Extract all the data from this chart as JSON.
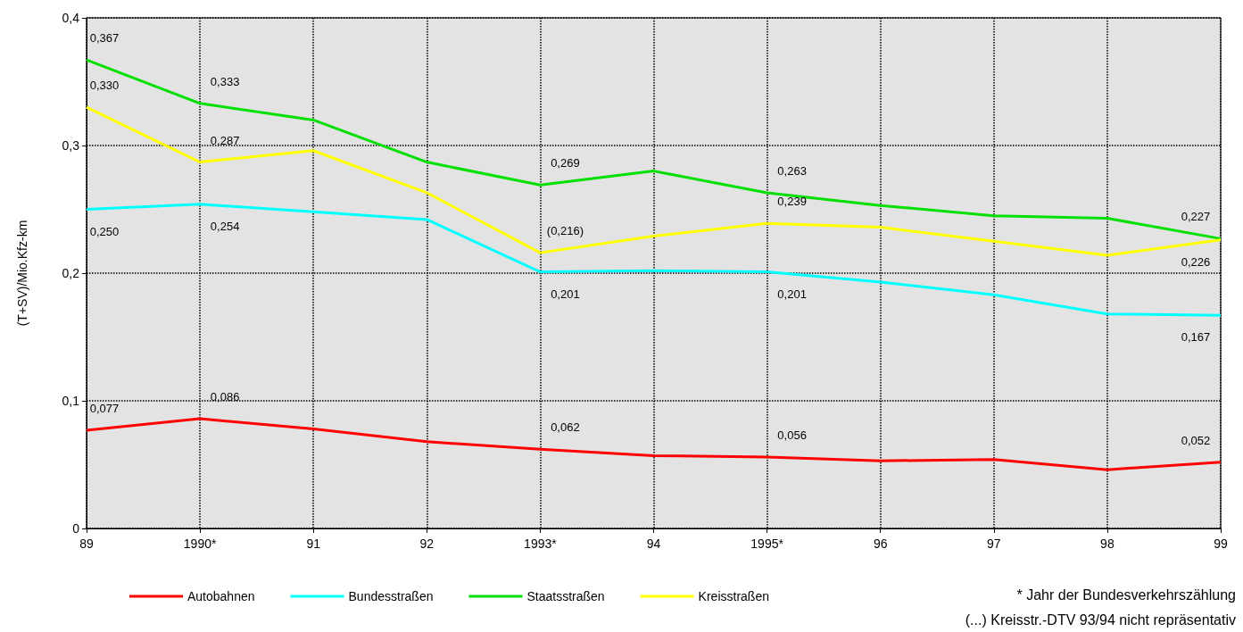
{
  "chart_data": {
    "type": "line",
    "ylabel": "(T+SV)/Mio.Kfz-km",
    "categories": [
      "89",
      "1990*",
      "91",
      "92",
      "1993*",
      "94",
      "1995*",
      "96",
      "97",
      "98",
      "99"
    ],
    "series": [
      {
        "name": "Autobahnen",
        "color": "#ff0000",
        "values": [
          0.077,
          0.086,
          0.078,
          0.068,
          0.062,
          0.057,
          0.056,
          0.053,
          0.054,
          0.046,
          0.052
        ],
        "value_labels": [
          "0,077",
          "0,086",
          null,
          null,
          "0,062",
          null,
          "0,056",
          null,
          null,
          null,
          "0,052"
        ]
      },
      {
        "name": "Bundesstraßen",
        "color": "#00ffff",
        "values": [
          0.25,
          0.254,
          0.248,
          0.242,
          0.201,
          0.202,
          0.201,
          0.193,
          0.183,
          0.168,
          0.167
        ],
        "value_labels": [
          "0,250",
          "0,254",
          null,
          null,
          "0,201",
          null,
          "0,201",
          null,
          null,
          null,
          "0,167"
        ]
      },
      {
        "name": "Staatsstraßen",
        "color": "#00e000",
        "values": [
          0.367,
          0.333,
          0.32,
          0.287,
          0.269,
          0.28,
          0.263,
          0.253,
          0.245,
          0.243,
          0.227
        ],
        "value_labels": [
          "0,367",
          "0,333",
          null,
          null,
          "0,269",
          null,
          "0,263",
          null,
          null,
          null,
          "0,227"
        ]
      },
      {
        "name": "Kreisstraßen",
        "color": "#ffff00",
        "values": [
          0.33,
          0.287,
          0.296,
          0.263,
          0.216,
          0.229,
          0.239,
          0.236,
          0.225,
          0.214,
          0.226
        ],
        "value_labels": [
          "0,330",
          "0,287",
          null,
          null,
          "(0,216)",
          null,
          "0,239",
          null,
          null,
          null,
          "0,226"
        ]
      }
    ],
    "ylim": [
      0,
      0.4
    ],
    "yticks": [
      0,
      {
        "value": 0.1,
        "label": "0,1"
      },
      {
        "value": 0.2,
        "label": "0,2"
      },
      {
        "value": 0.3,
        "label": "0,3"
      },
      {
        "value": 0.4,
        "label": "0,4"
      }
    ],
    "grid": true,
    "legend": "bottom",
    "marker": "none",
    "line_style": "solid",
    "annotations": [
      "* Jahr der Bundesverkehrszählung",
      "(...) Kreisstr.-DTV 93/94 nicht repräsentativ"
    ]
  }
}
